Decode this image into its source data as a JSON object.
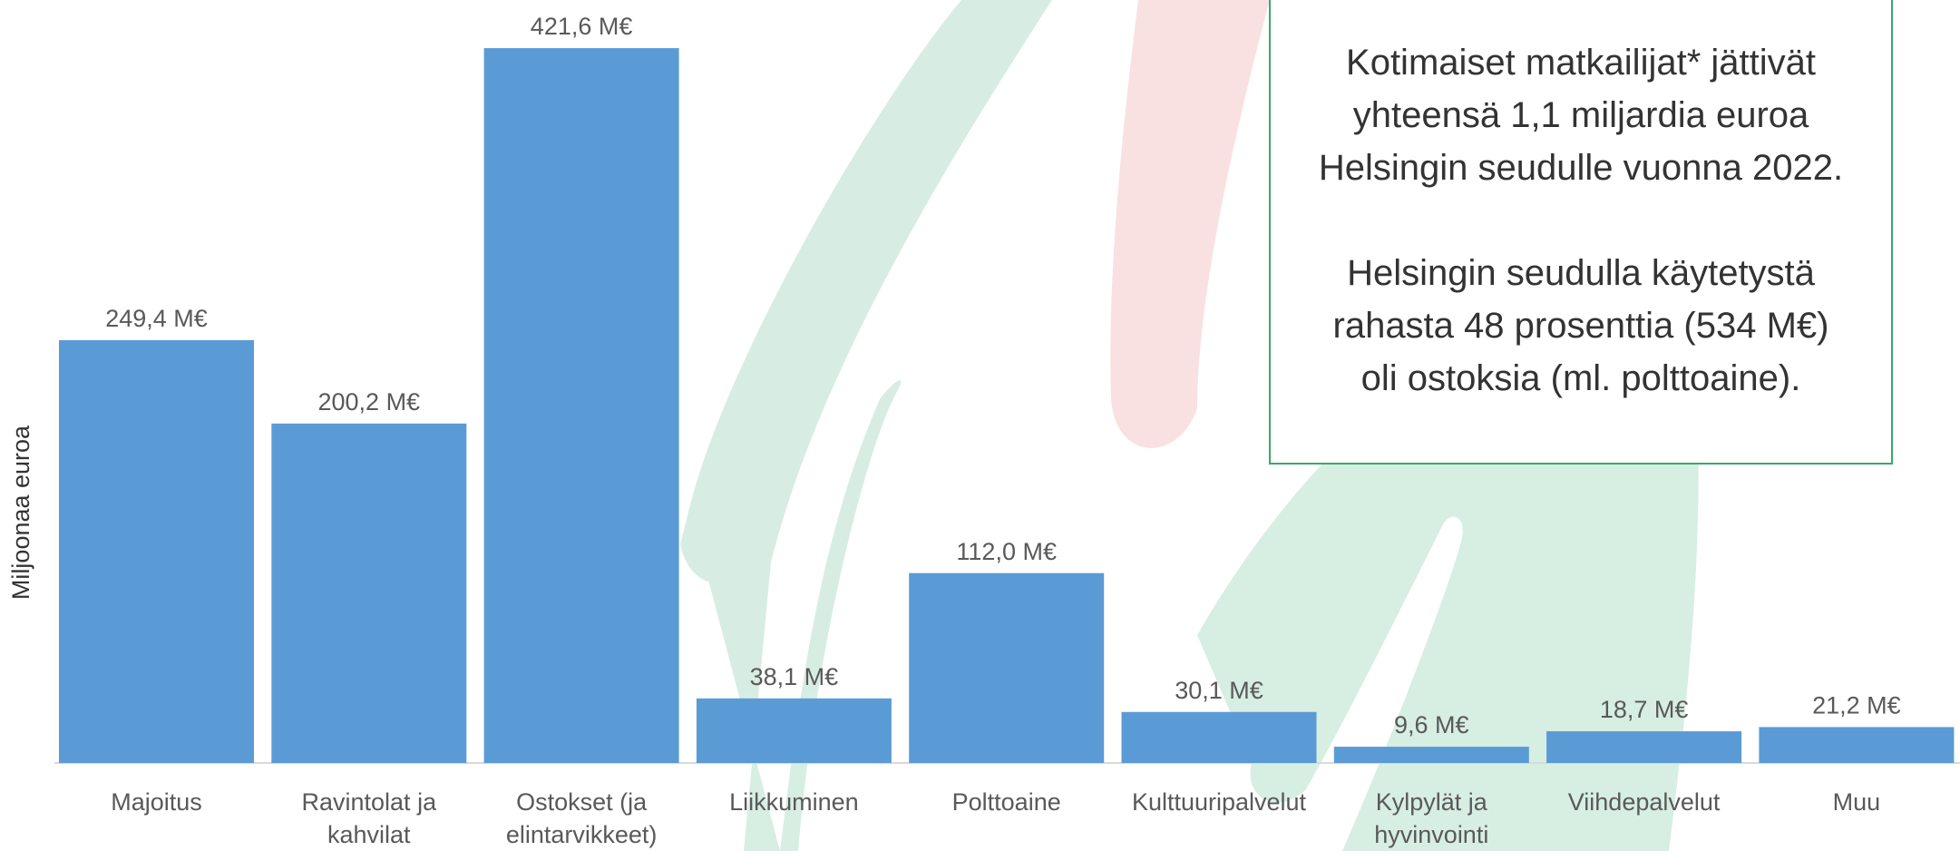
{
  "chart_data": {
    "type": "bar",
    "y_label": "Miljoonaa euroa",
    "categories": [
      "Majoitus",
      "Ravintolat ja kahvilat",
      "Ostokset (ja elintarvikkeet)",
      "Liikkuminen",
      "Polttoaine",
      "Kulttuuripalvelut",
      "Kylpylät ja hyvinvointi",
      "Viihdepalvelut",
      "Muu"
    ],
    "values": [
      249.4,
      200.2,
      421.6,
      38.1,
      112.0,
      30.1,
      9.6,
      18.7,
      21.2
    ],
    "value_labels": [
      "249,4 M€",
      "200,2 M€",
      "421,6 M€",
      "38,1 M€",
      "112,0 M€",
      "30,1 M€",
      "9,6 M€",
      "18,7 M€",
      "21,2 M€"
    ],
    "color": "#5b9bd5",
    "ylim": [
      0,
      450
    ],
    "annotations": [
      [
        "Kotimaiset matkailijat* jättivät",
        "yhteensä 1,1 miljardia euroa",
        "Helsingin seudulle vuonna 2022."
      ],
      [
        "Helsingin seudulla käytetystä",
        "rahasta 48 prosenttia (534 M€)",
        "oli ostoksia (ml. polttoaine)."
      ]
    ]
  }
}
